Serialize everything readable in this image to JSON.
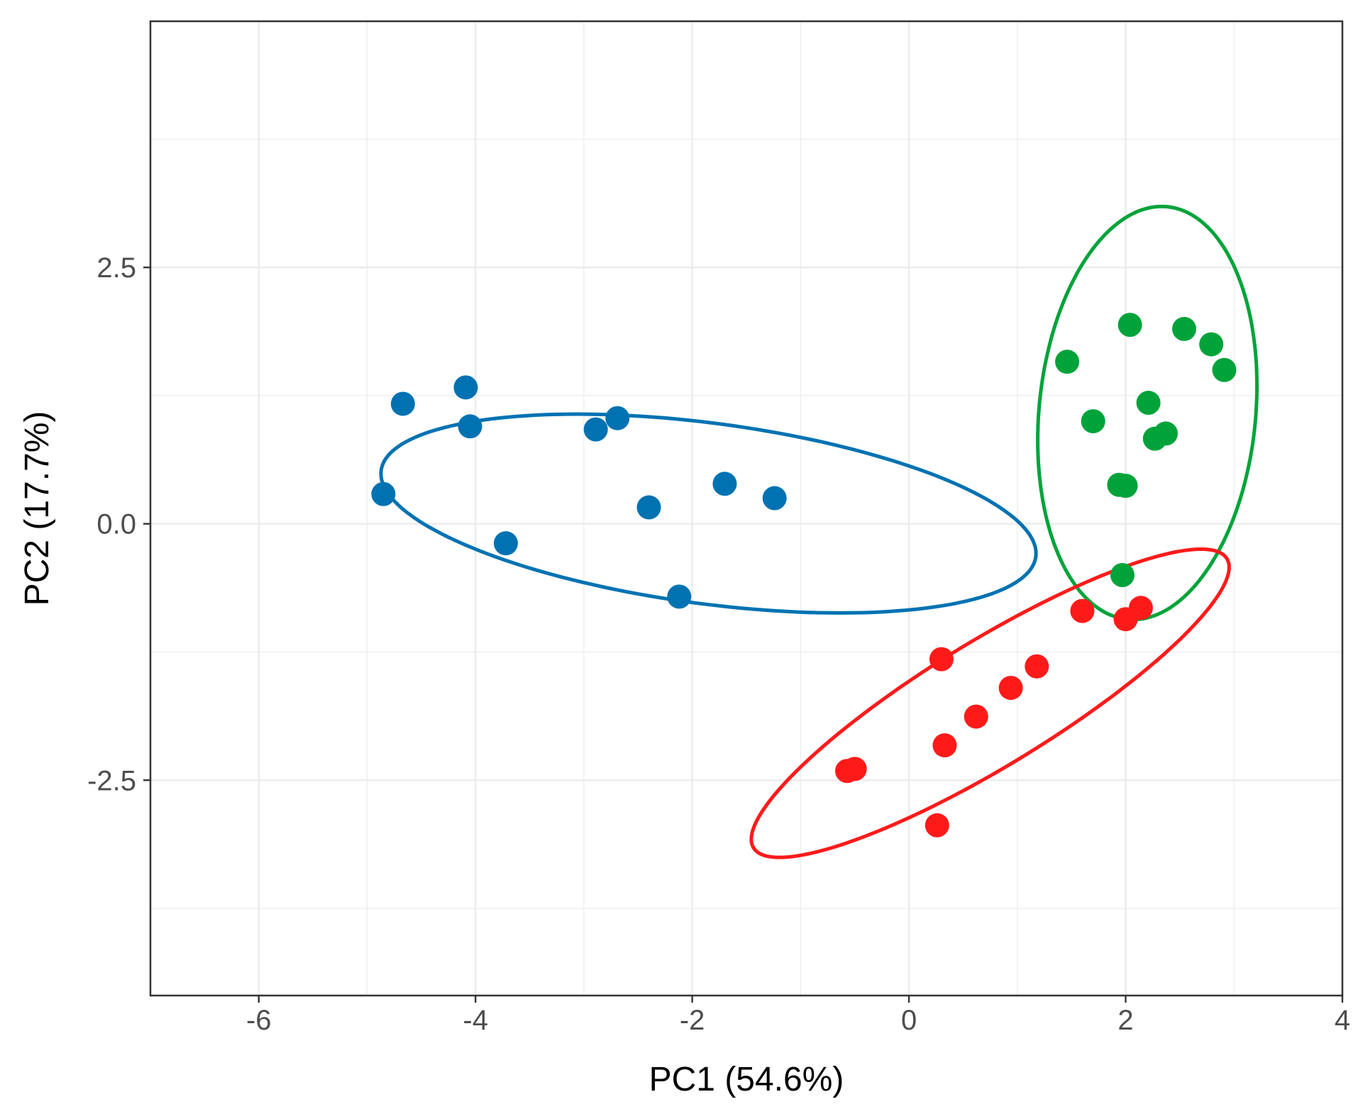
{
  "chart_data": {
    "type": "scatter",
    "title": "",
    "xlabel": "PC1 (54.6%)",
    "ylabel": "PC2 (17.7%)",
    "xlim": [
      -7,
      4
    ],
    "ylim": [
      -4.6,
      4.9
    ],
    "x_ticks": [
      -6,
      -4,
      -2,
      0,
      2,
      4
    ],
    "x_tick_labels": [
      "-6",
      "-4",
      "-2",
      "0",
      "2",
      "4"
    ],
    "y_ticks": [
      -2.5,
      0.0,
      2.5
    ],
    "y_tick_labels": [
      "-2.5",
      "0.0",
      "2.5"
    ],
    "grid": true,
    "legend": "none",
    "series": [
      {
        "color": "#0072b2",
        "points": [
          {
            "x": -4.85,
            "y": 0.29
          },
          {
            "x": -4.67,
            "y": 1.17
          },
          {
            "x": -4.09,
            "y": 1.33
          },
          {
            "x": -4.05,
            "y": 0.95
          },
          {
            "x": -3.72,
            "y": -0.19
          },
          {
            "x": -2.89,
            "y": 0.92
          },
          {
            "x": -2.69,
            "y": 1.03
          },
          {
            "x": -2.4,
            "y": 0.16
          },
          {
            "x": -2.12,
            "y": -0.71
          },
          {
            "x": -1.7,
            "y": 0.39
          },
          {
            "x": -1.24,
            "y": 0.25
          }
        ],
        "ellipse": {
          "cx": -1.85,
          "cy": 0.1,
          "rx": 3.05,
          "ry": 0.88,
          "angle_deg": -8
        }
      },
      {
        "color": "#00a33a",
        "points": [
          {
            "x": 1.46,
            "y": 1.58
          },
          {
            "x": 1.7,
            "y": 1.0
          },
          {
            "x": 1.94,
            "y": 0.38
          },
          {
            "x": 2.0,
            "y": 0.37
          },
          {
            "x": 1.97,
            "y": -0.5
          },
          {
            "x": 2.04,
            "y": 1.94
          },
          {
            "x": 2.21,
            "y": 1.18
          },
          {
            "x": 2.27,
            "y": 0.83
          },
          {
            "x": 2.37,
            "y": 0.88
          },
          {
            "x": 2.54,
            "y": 1.9
          },
          {
            "x": 2.79,
            "y": 1.75
          },
          {
            "x": 2.91,
            "y": 1.5
          }
        ],
        "ellipse": {
          "cx": 2.2,
          "cy": 1.08,
          "rx": 1.0,
          "ry": 2.02,
          "angle_deg": -5
        }
      },
      {
        "color": "#ff1a1a",
        "points": [
          {
            "x": -0.57,
            "y": -2.41
          },
          {
            "x": -0.5,
            "y": -2.39
          },
          {
            "x": 0.26,
            "y": -2.94
          },
          {
            "x": 0.3,
            "y": -1.32
          },
          {
            "x": 0.33,
            "y": -2.16
          },
          {
            "x": 0.62,
            "y": -1.88
          },
          {
            "x": 0.94,
            "y": -1.6
          },
          {
            "x": 1.18,
            "y": -1.39
          },
          {
            "x": 1.6,
            "y": -0.85
          },
          {
            "x": 2.0,
            "y": -0.93
          },
          {
            "x": 2.14,
            "y": -0.82
          }
        ],
        "ellipse": {
          "cx": 0.75,
          "cy": -1.75,
          "rx": 2.6,
          "ry": 0.6,
          "angle_deg": 33
        }
      }
    ]
  }
}
